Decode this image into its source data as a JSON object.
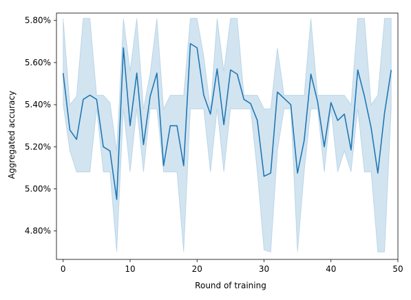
{
  "chart_data": {
    "type": "line",
    "title": "",
    "xlabel": "Round of training",
    "ylabel": "Aggregated accuracy",
    "xlim": [
      -1,
      50
    ],
    "ylim": [
      4.665,
      5.835
    ],
    "grid": false,
    "legend": "none",
    "x_ticks": [
      0,
      10,
      20,
      30,
      40,
      50
    ],
    "y_ticks": [
      4.8,
      5.0,
      5.2,
      5.4,
      5.6,
      5.8
    ],
    "y_tick_labels": [
      "4.80%",
      "5.00%",
      "5.20%",
      "5.40%",
      "5.60%",
      "5.80%"
    ],
    "line_color": "#1f77b4",
    "band_color": "#1f77b4",
    "series": [
      {
        "x": [
          0,
          1,
          2,
          3,
          4,
          5,
          6,
          7,
          8,
          9,
          10,
          11,
          12,
          13,
          14,
          15,
          16,
          17,
          18,
          19,
          20,
          21,
          22,
          23,
          24,
          25,
          26,
          27,
          28,
          29,
          30,
          31,
          32,
          33,
          34,
          35,
          36,
          37,
          38,
          39,
          40,
          41,
          42,
          43,
          44,
          45,
          46,
          47,
          48,
          49
        ],
        "y": [
          5.55,
          5.28,
          5.235,
          5.425,
          5.445,
          5.425,
          5.2,
          5.18,
          4.95,
          5.67,
          5.3,
          5.55,
          5.21,
          5.44,
          5.55,
          5.11,
          5.3,
          5.3,
          5.11,
          5.69,
          5.67,
          5.445,
          5.355,
          5.57,
          5.305,
          5.565,
          5.545,
          5.425,
          5.405,
          5.325,
          5.06,
          5.075,
          5.46,
          5.43,
          5.4,
          5.075,
          5.23,
          5.545,
          5.415,
          5.2,
          5.41,
          5.325,
          5.355,
          5.185,
          5.565,
          5.44,
          5.29,
          5.075,
          5.36,
          5.565
        ],
        "ci_lower": [
          5.4,
          5.18,
          5.08,
          5.08,
          5.08,
          5.38,
          5.08,
          5.08,
          4.7,
          5.38,
          5.08,
          5.38,
          5.08,
          5.38,
          5.38,
          5.08,
          5.08,
          5.08,
          4.7,
          5.38,
          5.38,
          5.38,
          5.08,
          5.38,
          5.08,
          5.38,
          5.38,
          5.38,
          5.38,
          5.08,
          4.71,
          4.7,
          5.18,
          5.38,
          5.38,
          4.7,
          5.08,
          5.38,
          5.38,
          5.08,
          5.38,
          5.08,
          5.18,
          5.08,
          5.38,
          5.08,
          5.08,
          4.7,
          4.7,
          5.38
        ],
        "ci_upper": [
          5.81,
          5.4,
          5.44,
          5.81,
          5.81,
          5.445,
          5.445,
          5.41,
          5.18,
          5.81,
          5.56,
          5.81,
          5.38,
          5.55,
          5.81,
          5.38,
          5.445,
          5.445,
          5.445,
          5.81,
          5.81,
          5.63,
          5.38,
          5.81,
          5.56,
          5.81,
          5.81,
          5.445,
          5.445,
          5.445,
          5.38,
          5.38,
          5.67,
          5.445,
          5.445,
          5.445,
          5.445,
          5.81,
          5.445,
          5.445,
          5.445,
          5.445,
          5.445,
          5.4,
          5.81,
          5.81,
          5.4,
          5.445,
          5.81,
          5.81
        ]
      }
    ]
  }
}
